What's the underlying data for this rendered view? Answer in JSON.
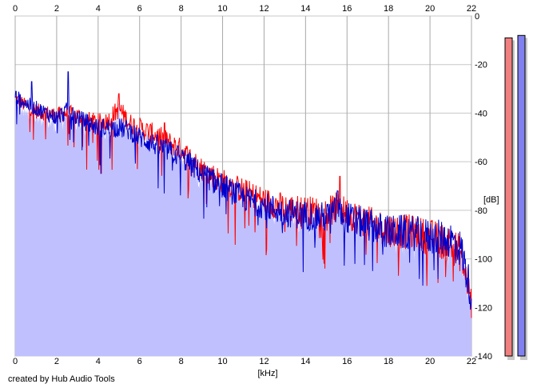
{
  "chart_data": {
    "type": "line",
    "x_unit_label": "[kHz]",
    "y_unit_label": "[dB]",
    "xlim": [
      0,
      22
    ],
    "ylim": [
      -140,
      0
    ],
    "x_ticks": [
      0,
      2,
      4,
      6,
      8,
      10,
      12,
      14,
      16,
      18,
      20,
      22
    ],
    "y_ticks": [
      0,
      -20,
      -40,
      -60,
      -80,
      -100,
      -120,
      -140
    ],
    "x_tick_labels": [
      "0",
      "2",
      "4",
      "6",
      "8",
      "10",
      "12",
      "14",
      "16",
      "18",
      "20",
      "22"
    ],
    "y_tick_labels": [
      "0",
      "-20",
      "-40",
      "-60",
      "-80",
      "-100",
      "-120",
      "-140"
    ],
    "grid": true,
    "fill_color": "#c0c0ff",
    "series": [
      {
        "color": "#ff0000",
        "envelope": [
          [
            0.0,
            -34
          ],
          [
            0.5,
            -37
          ],
          [
            1.0,
            -39
          ],
          [
            1.5,
            -40
          ],
          [
            2.0,
            -41
          ],
          [
            2.5,
            -40
          ],
          [
            3.0,
            -41
          ],
          [
            3.5,
            -43
          ],
          [
            4.0,
            -44
          ],
          [
            4.5,
            -43
          ],
          [
            5.0,
            -38
          ],
          [
            5.5,
            -44
          ],
          [
            6.0,
            -46
          ],
          [
            7.0,
            -50
          ],
          [
            8.0,
            -55
          ],
          [
            9.0,
            -63
          ],
          [
            10.0,
            -68
          ],
          [
            11.0,
            -72
          ],
          [
            12.0,
            -76
          ],
          [
            13.0,
            -79
          ],
          [
            14.0,
            -80
          ],
          [
            15.0,
            -81
          ],
          [
            15.5,
            -79
          ],
          [
            16.0,
            -81
          ],
          [
            17.0,
            -85
          ],
          [
            18.0,
            -88
          ],
          [
            19.0,
            -89
          ],
          [
            20.0,
            -91
          ],
          [
            21.0,
            -94
          ],
          [
            21.5,
            -98
          ],
          [
            22.0,
            -118
          ]
        ],
        "peaks": [
          [
            5.0,
            -32
          ],
          [
            15.65,
            -66
          ],
          [
            7.2,
            -44
          ]
        ]
      },
      {
        "color": "#0000cc",
        "envelope": [
          [
            0.0,
            -33
          ],
          [
            0.5,
            -36
          ],
          [
            1.0,
            -38
          ],
          [
            1.5,
            -40
          ],
          [
            2.0,
            -42
          ],
          [
            2.5,
            -39
          ],
          [
            3.0,
            -42
          ],
          [
            3.5,
            -44
          ],
          [
            4.0,
            -46
          ],
          [
            4.5,
            -46
          ],
          [
            5.0,
            -46
          ],
          [
            5.5,
            -47
          ],
          [
            6.0,
            -50
          ],
          [
            7.0,
            -54
          ],
          [
            8.0,
            -58
          ],
          [
            9.0,
            -65
          ],
          [
            10.0,
            -70
          ],
          [
            11.0,
            -75
          ],
          [
            12.0,
            -78
          ],
          [
            13.0,
            -81
          ],
          [
            14.0,
            -82
          ],
          [
            15.0,
            -83
          ],
          [
            15.5,
            -80
          ],
          [
            16.0,
            -83
          ],
          [
            17.0,
            -86
          ],
          [
            18.0,
            -89
          ],
          [
            19.0,
            -89
          ],
          [
            20.0,
            -91
          ],
          [
            21.0,
            -92
          ],
          [
            21.5,
            -96
          ],
          [
            22.0,
            -115
          ]
        ],
        "peaks": [
          [
            2.55,
            -23
          ],
          [
            15.55,
            -72
          ],
          [
            0.8,
            -27
          ]
        ]
      }
    ],
    "level_meters": [
      {
        "color": "#f08080",
        "level_db": -9
      },
      {
        "color": "#8080f0",
        "level_db": -8
      }
    ]
  },
  "footer": {
    "credit": "created by Hub Audio Tools"
  }
}
